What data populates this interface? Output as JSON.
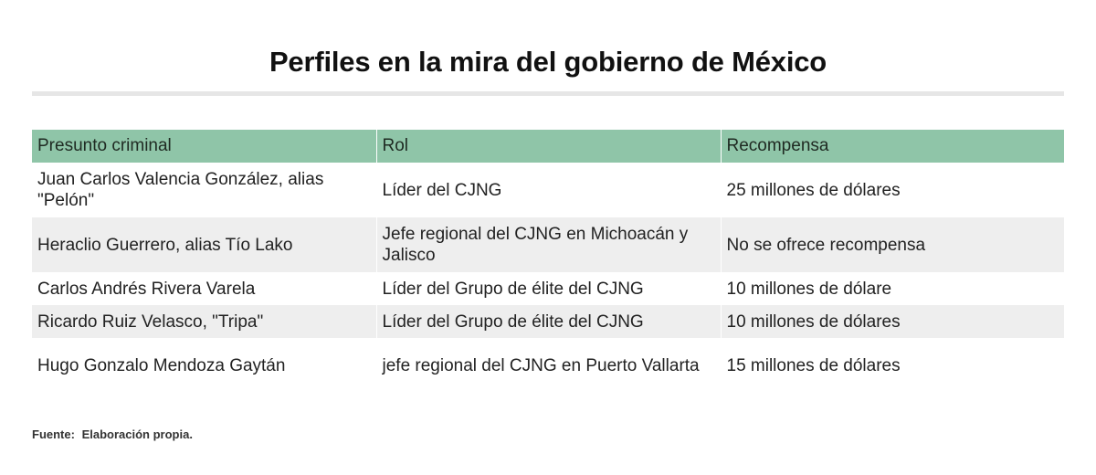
{
  "title": "Perfiles en la mira del gobierno de México",
  "table": {
    "headers": [
      "Presunto criminal",
      "Rol",
      "Recompensa"
    ],
    "rows": [
      [
        "Juan Carlos Valencia González, alias \"Pelón\"",
        "Líder del CJNG",
        "25 millones de dólares"
      ],
      [
        "Heraclio Guerrero, alias Tío Lako",
        "Jefe regional del CJNG en Michoacán y Jalisco",
        "No se ofrece recompensa"
      ],
      [
        "Carlos Andrés Rivera Varela",
        "Líder del Grupo de élite del CJNG",
        "10 millones de dólare"
      ],
      [
        "Ricardo Ruiz Velasco, \"Tripa\"",
        "Líder del Grupo de élite del CJNG",
        "10 millones de dólares"
      ],
      [
        "Hugo Gonzalo Mendoza Gaytán",
        "jefe regional del CJNG en Puerto Vallarta",
        "15 millones de dólares"
      ]
    ]
  },
  "source": {
    "label": "Fuente:",
    "text": "Elaboración propia."
  },
  "colors": {
    "header_bg": "#8fc5a8",
    "row_alt_bg": "#eeeeee",
    "rule": "#e6e6e6"
  }
}
